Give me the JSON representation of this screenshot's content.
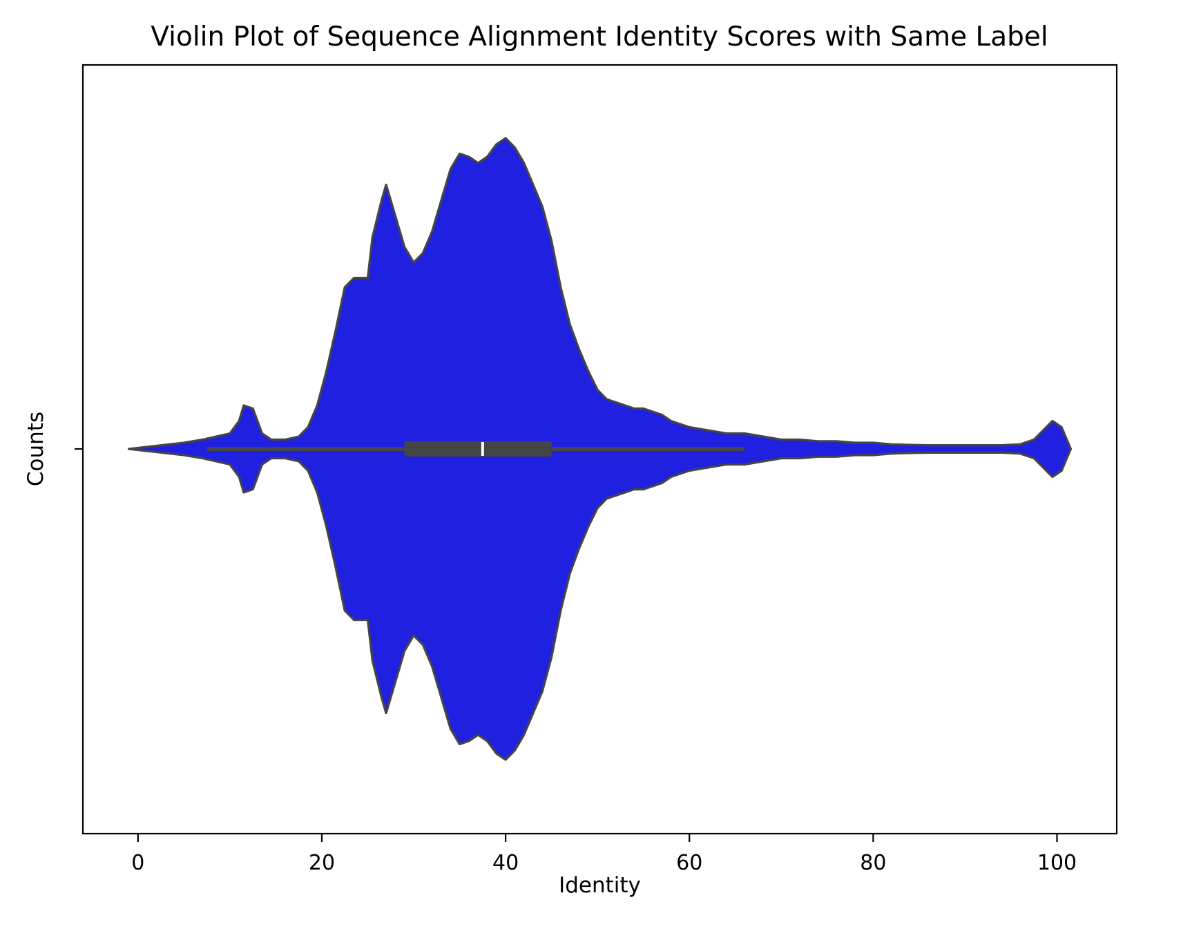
{
  "chart_data": {
    "type": "violin",
    "title": "Violin Plot of Sequence Alignment Identity Scores with Same Label",
    "xlabel": "Identity",
    "ylabel": "Counts",
    "xlim": [
      -6,
      106.5
    ],
    "xticks": [
      0,
      20,
      40,
      60,
      80,
      100
    ],
    "xtick_labels": [
      "0",
      "20",
      "40",
      "60",
      "80",
      "100"
    ],
    "grid": false,
    "legend": "none",
    "colors": {
      "fill": "#2020e0",
      "outline": "#454545",
      "box": "#454545",
      "median": "#ffffff",
      "axes": "#000000"
    },
    "density_profile": {
      "x": [
        -1,
        2,
        5,
        7,
        8.5,
        10,
        11,
        11.5,
        12.5,
        13.5,
        14.5,
        16,
        17.5,
        18.5,
        19.5,
        20.5,
        21.5,
        22.5,
        23.5,
        25,
        25.5,
        26.5,
        27,
        28,
        29,
        30,
        31,
        32,
        33,
        34,
        35,
        36,
        37,
        38,
        39,
        40,
        41,
        42,
        43,
        44,
        45,
        46,
        47,
        48,
        49,
        50,
        51,
        52,
        53,
        54,
        55,
        56,
        57,
        58,
        59,
        60,
        62,
        64,
        66,
        68,
        70,
        72,
        74,
        76,
        78,
        80,
        82,
        84,
        86,
        88,
        90,
        92,
        94,
        96,
        97.5,
        98.5,
        99.5,
        100.5,
        101.5
      ],
      "width": [
        0,
        0.01,
        0.02,
        0.03,
        0.04,
        0.05,
        0.09,
        0.14,
        0.13,
        0.05,
        0.03,
        0.03,
        0.04,
        0.07,
        0.14,
        0.25,
        0.38,
        0.52,
        0.55,
        0.55,
        0.68,
        0.8,
        0.85,
        0.75,
        0.65,
        0.6,
        0.63,
        0.7,
        0.8,
        0.9,
        0.95,
        0.94,
        0.92,
        0.94,
        0.98,
        1.0,
        0.97,
        0.92,
        0.85,
        0.78,
        0.67,
        0.52,
        0.4,
        0.32,
        0.25,
        0.19,
        0.16,
        0.15,
        0.14,
        0.13,
        0.13,
        0.12,
        0.11,
        0.09,
        0.08,
        0.07,
        0.06,
        0.05,
        0.05,
        0.04,
        0.03,
        0.03,
        0.025,
        0.025,
        0.02,
        0.02,
        0.015,
        0.013,
        0.012,
        0.012,
        0.012,
        0.012,
        0.012,
        0.015,
        0.03,
        0.06,
        0.09,
        0.07,
        0.0
      ]
    },
    "box": {
      "whisker_low": 7.5,
      "q1": 29,
      "median": 37.5,
      "q3": 45,
      "whisker_high": 66
    }
  }
}
